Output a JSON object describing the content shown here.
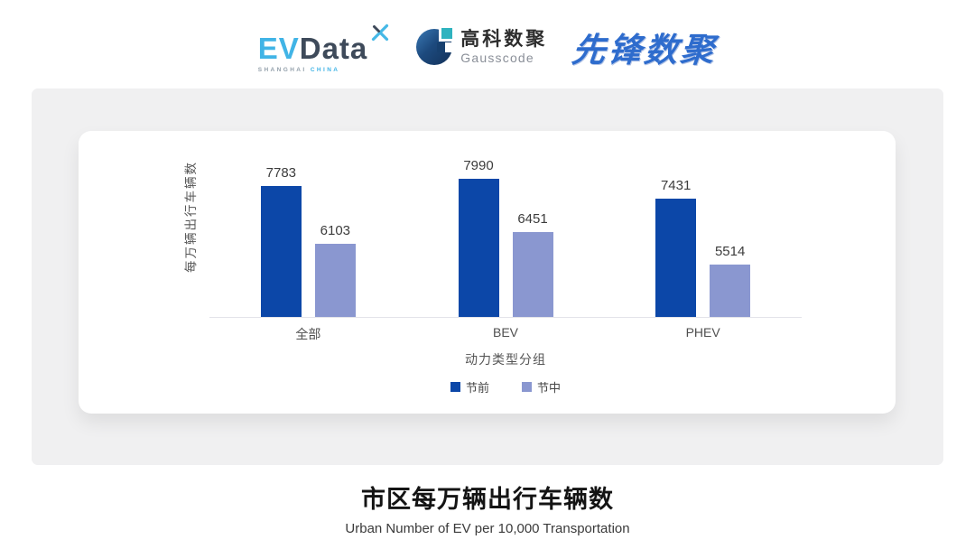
{
  "header": {
    "evdata": {
      "ev": "EV",
      "data": "Data",
      "sub_left": "SHANGHAI",
      "sub_right": "CHINA",
      "star_icon": "four-point-spark",
      "colors": {
        "light_blue": "#41b4e6",
        "dark_slate": "#3e4a5a"
      }
    },
    "gausscode": {
      "cn": "高科数聚",
      "en": "Gausscode",
      "mark_icon": "g-circle-mark",
      "colors": {
        "navy": "#1d4a7e",
        "teal": "#2fb3bf"
      }
    },
    "pioneer": {
      "text": "先锋数聚",
      "color": "#2e6ccd"
    }
  },
  "chart_data": {
    "type": "bar",
    "title": "",
    "categories": [
      "全部",
      "BEV",
      "PHEV"
    ],
    "series": [
      {
        "name": "节前",
        "color": "#0c47a8",
        "values": [
          7783,
          7990,
          7431
        ]
      },
      {
        "name": "节中",
        "color": "#8a97d0",
        "values": [
          6103,
          6451,
          5514
        ]
      }
    ],
    "xlabel": "动力类型分组",
    "ylabel": "每万辆出行车辆数",
    "ylim": [
      4000,
      9140
    ],
    "grid": false,
    "legend_position": "bottom",
    "value_labels": true,
    "axis_line_color": "#e3e3e9"
  },
  "footer": {
    "title": "市区每万辆出行车辆数",
    "subtitle": "Urban Number of EV per 10,000 Transportation"
  }
}
